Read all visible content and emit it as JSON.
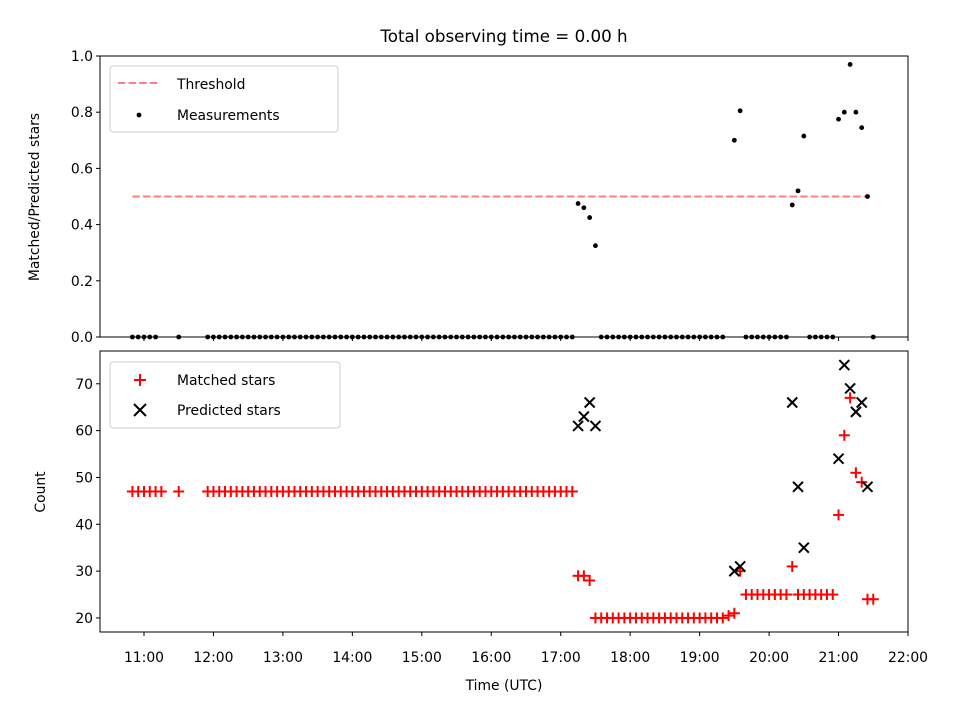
{
  "figure": {
    "title": "Total observing time = 0.00 h",
    "xlabel": "Time (UTC)"
  },
  "chart_data": [
    {
      "type": "scatter",
      "ylabel": "Matched/Predicted stars",
      "ylim": [
        0,
        1.0
      ],
      "yticks": [
        "0.0",
        "0.2",
        "0.4",
        "0.6",
        "0.8",
        "1.0"
      ],
      "xlim": [
        "10:22",
        "22:00"
      ],
      "xticks": [
        "11:00",
        "12:00",
        "13:00",
        "14:00",
        "15:00",
        "16:00",
        "17:00",
        "18:00",
        "19:00",
        "20:00",
        "21:00",
        "22:00"
      ],
      "grid": false,
      "legend_position": "top-left",
      "legend": [
        "Threshold",
        "Measurements"
      ],
      "colors": {
        "threshold": "#ff7f7f",
        "measurements": "#000000"
      },
      "threshold": {
        "y": 0.5,
        "x_start": "10:50",
        "x_end": "21:26"
      },
      "measurements": [
        [
          "10:50",
          0.0
        ],
        [
          "10:55",
          0.0
        ],
        [
          "11:00",
          0.0
        ],
        [
          "11:05",
          0.0
        ],
        [
          "11:10",
          0.0
        ],
        [
          "11:30",
          0.0
        ],
        [
          "11:55",
          0.0
        ],
        [
          "12:00",
          0.0
        ],
        [
          "12:05",
          0.0
        ],
        [
          "12:10",
          0.0
        ],
        [
          "12:15",
          0.0
        ],
        [
          "12:20",
          0.0
        ],
        [
          "12:25",
          0.0
        ],
        [
          "12:30",
          0.0
        ],
        [
          "12:35",
          0.0
        ],
        [
          "12:40",
          0.0
        ],
        [
          "12:45",
          0.0
        ],
        [
          "12:50",
          0.0
        ],
        [
          "12:55",
          0.0
        ],
        [
          "13:00",
          0.0
        ],
        [
          "13:05",
          0.0
        ],
        [
          "13:10",
          0.0
        ],
        [
          "13:15",
          0.0
        ],
        [
          "13:20",
          0.0
        ],
        [
          "13:25",
          0.0
        ],
        [
          "13:30",
          0.0
        ],
        [
          "13:35",
          0.0
        ],
        [
          "13:40",
          0.0
        ],
        [
          "13:45",
          0.0
        ],
        [
          "13:50",
          0.0
        ],
        [
          "13:55",
          0.0
        ],
        [
          "14:00",
          0.0
        ],
        [
          "14:05",
          0.0
        ],
        [
          "14:10",
          0.0
        ],
        [
          "14:15",
          0.0
        ],
        [
          "14:20",
          0.0
        ],
        [
          "14:25",
          0.0
        ],
        [
          "14:30",
          0.0
        ],
        [
          "14:35",
          0.0
        ],
        [
          "14:40",
          0.0
        ],
        [
          "14:45",
          0.0
        ],
        [
          "14:50",
          0.0
        ],
        [
          "14:55",
          0.0
        ],
        [
          "15:00",
          0.0
        ],
        [
          "15:05",
          0.0
        ],
        [
          "15:10",
          0.0
        ],
        [
          "15:15",
          0.0
        ],
        [
          "15:20",
          0.0
        ],
        [
          "15:25",
          0.0
        ],
        [
          "15:30",
          0.0
        ],
        [
          "15:35",
          0.0
        ],
        [
          "15:40",
          0.0
        ],
        [
          "15:45",
          0.0
        ],
        [
          "15:50",
          0.0
        ],
        [
          "15:55",
          0.0
        ],
        [
          "16:00",
          0.0
        ],
        [
          "16:05",
          0.0
        ],
        [
          "16:10",
          0.0
        ],
        [
          "16:15",
          0.0
        ],
        [
          "16:20",
          0.0
        ],
        [
          "16:25",
          0.0
        ],
        [
          "16:30",
          0.0
        ],
        [
          "16:35",
          0.0
        ],
        [
          "16:40",
          0.0
        ],
        [
          "16:45",
          0.0
        ],
        [
          "16:50",
          0.0
        ],
        [
          "16:55",
          0.0
        ],
        [
          "17:00",
          0.0
        ],
        [
          "17:05",
          0.0
        ],
        [
          "17:10",
          0.0
        ],
        [
          "17:15",
          0.475
        ],
        [
          "17:20",
          0.46
        ],
        [
          "17:25",
          0.425
        ],
        [
          "17:30",
          0.325
        ],
        [
          "17:35",
          0.0
        ],
        [
          "17:40",
          0.0
        ],
        [
          "17:45",
          0.0
        ],
        [
          "17:50",
          0.0
        ],
        [
          "17:55",
          0.0
        ],
        [
          "18:00",
          0.0
        ],
        [
          "18:05",
          0.0
        ],
        [
          "18:10",
          0.0
        ],
        [
          "18:15",
          0.0
        ],
        [
          "18:20",
          0.0
        ],
        [
          "18:25",
          0.0
        ],
        [
          "18:30",
          0.0
        ],
        [
          "18:35",
          0.0
        ],
        [
          "18:40",
          0.0
        ],
        [
          "18:45",
          0.0
        ],
        [
          "18:50",
          0.0
        ],
        [
          "18:55",
          0.0
        ],
        [
          "19:00",
          0.0
        ],
        [
          "19:05",
          0.0
        ],
        [
          "19:10",
          0.0
        ],
        [
          "19:15",
          0.0
        ],
        [
          "19:20",
          0.0
        ],
        [
          "19:30",
          0.7
        ],
        [
          "19:35",
          0.805
        ],
        [
          "19:40",
          0.0
        ],
        [
          "19:45",
          0.0
        ],
        [
          "19:50",
          0.0
        ],
        [
          "19:55",
          0.0
        ],
        [
          "20:00",
          0.0
        ],
        [
          "20:05",
          0.0
        ],
        [
          "20:10",
          0.0
        ],
        [
          "20:15",
          0.0
        ],
        [
          "20:20",
          0.47
        ],
        [
          "20:25",
          0.52
        ],
        [
          "20:30",
          0.715
        ],
        [
          "20:35",
          0.0
        ],
        [
          "20:40",
          0.0
        ],
        [
          "20:45",
          0.0
        ],
        [
          "20:50",
          0.0
        ],
        [
          "20:55",
          0.0
        ],
        [
          "21:00",
          0.775
        ],
        [
          "21:05",
          0.8
        ],
        [
          "21:10",
          0.97
        ],
        [
          "21:15",
          0.8
        ],
        [
          "21:20",
          0.745
        ],
        [
          "21:25",
          0.5
        ],
        [
          "21:30",
          0.0
        ]
      ]
    },
    {
      "type": "scatter",
      "ylabel": "Count",
      "ylim": [
        17,
        77
      ],
      "yticks": [
        "20",
        "30",
        "40",
        "50",
        "60",
        "70"
      ],
      "xlim": [
        "10:22",
        "22:00"
      ],
      "xticks": [
        "11:00",
        "12:00",
        "13:00",
        "14:00",
        "15:00",
        "16:00",
        "17:00",
        "18:00",
        "19:00",
        "20:00",
        "21:00",
        "22:00"
      ],
      "grid": false,
      "legend_position": "top-left",
      "legend": [
        "Matched stars",
        "Predicted stars"
      ],
      "colors": {
        "matched": "#ff0000",
        "predicted": "#000000"
      },
      "matched": [
        [
          "10:50",
          47
        ],
        [
          "10:55",
          47
        ],
        [
          "11:00",
          47
        ],
        [
          "11:05",
          47
        ],
        [
          "11:10",
          47
        ],
        [
          "11:15",
          47
        ],
        [
          "11:30",
          47
        ],
        [
          "11:55",
          47
        ],
        [
          "12:00",
          47
        ],
        [
          "12:05",
          47
        ],
        [
          "12:10",
          47
        ],
        [
          "12:15",
          47
        ],
        [
          "12:20",
          47
        ],
        [
          "12:25",
          47
        ],
        [
          "12:30",
          47
        ],
        [
          "12:35",
          47
        ],
        [
          "12:40",
          47
        ],
        [
          "12:45",
          47
        ],
        [
          "12:50",
          47
        ],
        [
          "12:55",
          47
        ],
        [
          "13:00",
          47
        ],
        [
          "13:05",
          47
        ],
        [
          "13:10",
          47
        ],
        [
          "13:15",
          47
        ],
        [
          "13:20",
          47
        ],
        [
          "13:25",
          47
        ],
        [
          "13:30",
          47
        ],
        [
          "13:35",
          47
        ],
        [
          "13:40",
          47
        ],
        [
          "13:45",
          47
        ],
        [
          "13:50",
          47
        ],
        [
          "13:55",
          47
        ],
        [
          "14:00",
          47
        ],
        [
          "14:05",
          47
        ],
        [
          "14:10",
          47
        ],
        [
          "14:15",
          47
        ],
        [
          "14:20",
          47
        ],
        [
          "14:25",
          47
        ],
        [
          "14:30",
          47
        ],
        [
          "14:35",
          47
        ],
        [
          "14:40",
          47
        ],
        [
          "14:45",
          47
        ],
        [
          "14:50",
          47
        ],
        [
          "14:55",
          47
        ],
        [
          "15:00",
          47
        ],
        [
          "15:05",
          47
        ],
        [
          "15:10",
          47
        ],
        [
          "15:15",
          47
        ],
        [
          "15:20",
          47
        ],
        [
          "15:25",
          47
        ],
        [
          "15:30",
          47
        ],
        [
          "15:35",
          47
        ],
        [
          "15:40",
          47
        ],
        [
          "15:45",
          47
        ],
        [
          "15:50",
          47
        ],
        [
          "15:55",
          47
        ],
        [
          "16:00",
          47
        ],
        [
          "16:05",
          47
        ],
        [
          "16:10",
          47
        ],
        [
          "16:15",
          47
        ],
        [
          "16:20",
          47
        ],
        [
          "16:25",
          47
        ],
        [
          "16:30",
          47
        ],
        [
          "16:35",
          47
        ],
        [
          "16:40",
          47
        ],
        [
          "16:45",
          47
        ],
        [
          "16:50",
          47
        ],
        [
          "16:55",
          47
        ],
        [
          "17:00",
          47
        ],
        [
          "17:05",
          47
        ],
        [
          "17:10",
          47
        ],
        [
          "17:15",
          29
        ],
        [
          "17:20",
          29
        ],
        [
          "17:25",
          28
        ],
        [
          "17:30",
          20
        ],
        [
          "17:35",
          20
        ],
        [
          "17:40",
          20
        ],
        [
          "17:45",
          20
        ],
        [
          "17:50",
          20
        ],
        [
          "17:55",
          20
        ],
        [
          "18:00",
          20
        ],
        [
          "18:05",
          20
        ],
        [
          "18:10",
          20
        ],
        [
          "18:15",
          20
        ],
        [
          "18:20",
          20
        ],
        [
          "18:25",
          20
        ],
        [
          "18:30",
          20
        ],
        [
          "18:35",
          20
        ],
        [
          "18:40",
          20
        ],
        [
          "18:45",
          20
        ],
        [
          "18:50",
          20
        ],
        [
          "18:55",
          20
        ],
        [
          "19:00",
          20
        ],
        [
          "19:05",
          20
        ],
        [
          "19:10",
          20
        ],
        [
          "19:15",
          20
        ],
        [
          "19:20",
          20
        ],
        [
          "19:25",
          20.5
        ],
        [
          "19:30",
          21
        ],
        [
          "19:35",
          30
        ],
        [
          "19:40",
          25
        ],
        [
          "19:45",
          25
        ],
        [
          "19:50",
          25
        ],
        [
          "19:55",
          25
        ],
        [
          "20:00",
          25
        ],
        [
          "20:05",
          25
        ],
        [
          "20:10",
          25
        ],
        [
          "20:15",
          25
        ],
        [
          "20:20",
          31
        ],
        [
          "20:25",
          25
        ],
        [
          "20:30",
          25
        ],
        [
          "20:35",
          25
        ],
        [
          "20:40",
          25
        ],
        [
          "20:45",
          25
        ],
        [
          "20:50",
          25
        ],
        [
          "20:55",
          25
        ],
        [
          "21:00",
          42
        ],
        [
          "21:05",
          59
        ],
        [
          "21:10",
          67
        ],
        [
          "21:15",
          51
        ],
        [
          "21:20",
          49
        ],
        [
          "21:25",
          24
        ],
        [
          "21:30",
          24
        ]
      ],
      "predicted": [
        [
          "17:15",
          61
        ],
        [
          "17:20",
          63
        ],
        [
          "17:25",
          66
        ],
        [
          "17:30",
          61
        ],
        [
          "19:30",
          30
        ],
        [
          "19:35",
          31
        ],
        [
          "20:20",
          66
        ],
        [
          "20:25",
          48
        ],
        [
          "20:30",
          35
        ],
        [
          "21:00",
          54
        ],
        [
          "21:05",
          74
        ],
        [
          "21:10",
          69
        ],
        [
          "21:15",
          64
        ],
        [
          "21:20",
          66
        ],
        [
          "21:25",
          48
        ]
      ]
    }
  ]
}
